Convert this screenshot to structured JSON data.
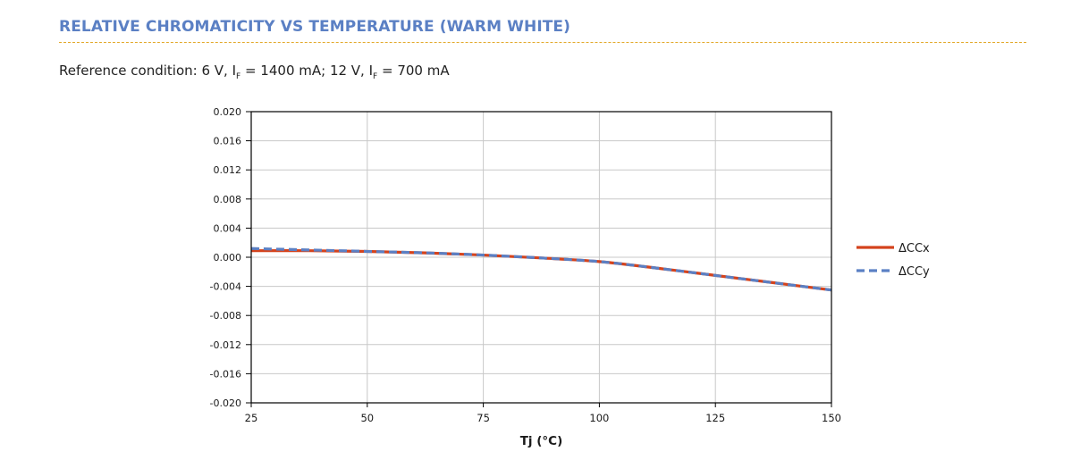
{
  "header": {
    "title": "RELATIVE CHROMATICITY VS TEMPERATURE (WARM WHITE)",
    "reference": {
      "prefix": "Reference condition: 6 V, I",
      "sub1": "F",
      "mid": " = 1400 mA; 12 V, I",
      "sub2": "F",
      "suffix": " = 700 mA"
    }
  },
  "chart_data": {
    "type": "line",
    "title": "",
    "xlabel": "Tj (°C)",
    "ylabel": "",
    "xlim": [
      25,
      150
    ],
    "ylim": [
      -0.02,
      0.02
    ],
    "x_ticks": [
      25,
      50,
      75,
      100,
      125,
      150
    ],
    "x_tick_labels": [
      "25",
      "50",
      "75",
      "100",
      "125",
      "150"
    ],
    "y_ticks": [
      0.02,
      0.016,
      0.012,
      0.008,
      0.004,
      0,
      -0.004,
      -0.008,
      -0.012,
      -0.016,
      -0.02
    ],
    "y_tick_labels": [
      "0.020",
      "0.016",
      "0.012",
      "0.008",
      "0.004",
      "0.000",
      "-0.004",
      "-0.008",
      "-0.012",
      "-0.016",
      "-0.020"
    ],
    "grid": true,
    "legend_position": "right",
    "series": [
      {
        "name": "ΔCCx",
        "color": "#d4431d",
        "style": "solid",
        "x": [
          25,
          37.5,
          50,
          62.5,
          75,
          87.5,
          100,
          112.5,
          125,
          137.5,
          150
        ],
        "y": [
          0.0009,
          0.0009,
          0.0008,
          0.0006,
          0.0003,
          -0.0001,
          -0.0006,
          -0.0015,
          -0.0025,
          -0.0035,
          -0.0045
        ]
      },
      {
        "name": "ΔCCy",
        "color": "#5b80c4",
        "style": "dashed",
        "x": [
          25,
          37.5,
          50,
          62.5,
          75,
          87.5,
          100,
          112.5,
          125,
          137.5,
          150
        ],
        "y": [
          0.0012,
          0.001,
          0.0008,
          0.0006,
          0.0003,
          -0.0001,
          -0.0006,
          -0.0015,
          -0.0025,
          -0.0035,
          -0.0045
        ]
      }
    ]
  }
}
